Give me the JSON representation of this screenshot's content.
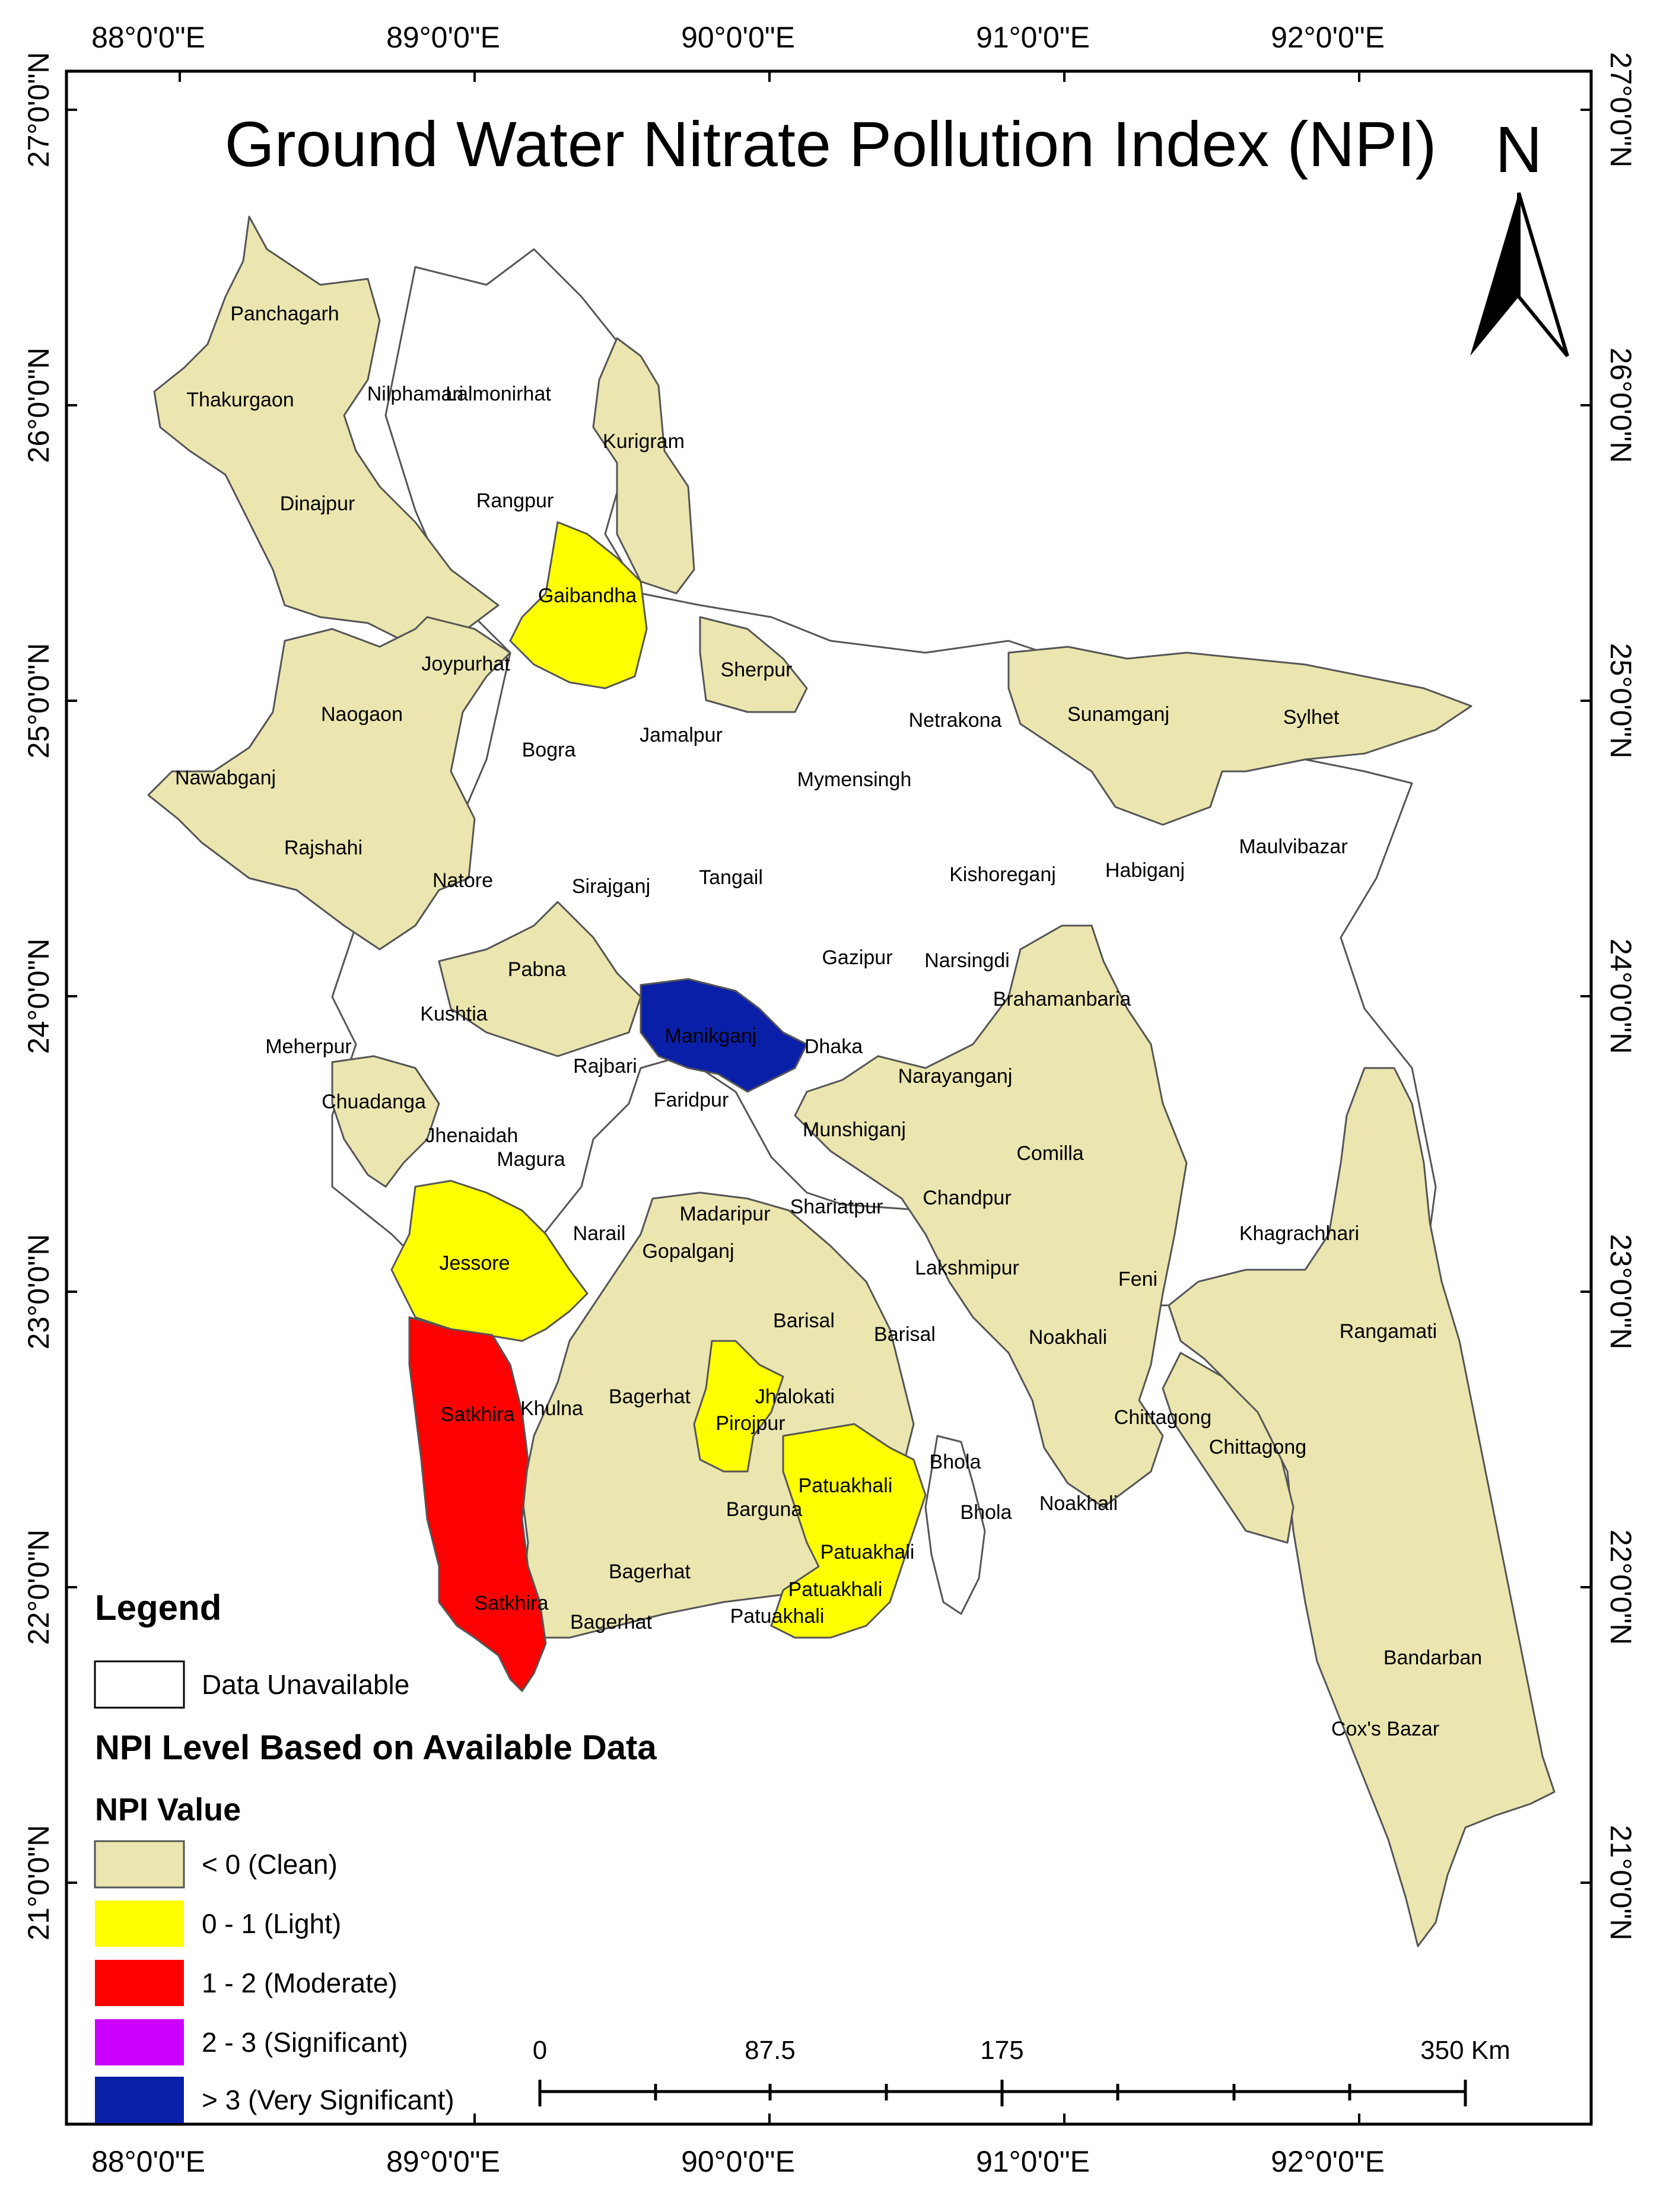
{
  "title": "Ground Water Nitrate Pollution Index (NPI)",
  "north_arrow": {
    "label": "N",
    "icon": "north-arrow-icon"
  },
  "graticule": {
    "longitude_labels": [
      "88°0'0\"E",
      "89°0'0\"E",
      "90°0'0\"E",
      "91°0'0\"E",
      "92°0'0\"E"
    ],
    "latitude_labels": [
      "27°0'0\"N",
      "26°0'0\"N",
      "25°0'0\"N",
      "24°0'0\"N",
      "23°0'0\"N",
      "22°0'0\"N",
      "21°0'0\"N"
    ]
  },
  "colors": {
    "clean": "#EBE6AF",
    "light": "#FFFF00",
    "moderate": "#FF0000",
    "significant": "#CC00FF",
    "very_significant": "#0A1FA8",
    "unavailable": "#FFFFFF",
    "outline": "#555555"
  },
  "districts": {
    "clean": [
      "Panchagarh",
      "Thakurgaon",
      "Dinajpur",
      "Kurigram",
      "Joypurhat",
      "Naogaon",
      "Nawabganj",
      "Rajshahi",
      "Sherpur",
      "Sunamganj",
      "Sylhet",
      "Pabna",
      "Chuadanga",
      "Dhaka",
      "Narayanganj",
      "Munshiganj",
      "Brahamanbaria",
      "Comilla",
      "Chandpur",
      "Madaripur",
      "Gopalganj",
      "Barisal",
      "Khulna",
      "Bagerhat",
      "Noakhali",
      "Chittagong",
      "Rangamati",
      "Bandarban",
      "Cox's Bazar"
    ],
    "light": [
      "Gaibandha",
      "Jessore",
      "Pirojpur",
      "Patuakhali"
    ],
    "moderate": [
      "Satkhira"
    ],
    "very_significant": [
      "Manikganj"
    ],
    "unavailable": [
      "Nilphamari",
      "Lalmonirhat",
      "Rangpur",
      "Bogra",
      "Jamalpur",
      "Netrakona",
      "Mymensingh",
      "Tangail",
      "Kishoreganj",
      "Habiganj",
      "Maulvibazar",
      "Natore",
      "Sirajganj",
      "Gazipur",
      "Narsingdi",
      "Kushtia",
      "Meherpur",
      "Rajbari",
      "Faridpur",
      "Jhenaidah",
      "Magura",
      "Narail",
      "Shariatpur",
      "Lakshmipur",
      "Jhalokati",
      "Barguna",
      "Bhola",
      "Feni",
      "Khagrachhari"
    ]
  },
  "map_labels": [
    "Panchagarh",
    "Thakurgaon",
    "Nilphamari",
    "Lalmonirhat",
    "Kurigram",
    "Dinajpur",
    "Rangpur",
    "Gaibandha",
    "Joypurhat",
    "Sherpur",
    "Naogaon",
    "Bogra",
    "Jamalpur",
    "Netrakona",
    "Sunamganj",
    "Sylhet",
    "Nawabganj",
    "Mymensingh",
    "Rajshahi",
    "Maulvibazar",
    "Natore",
    "Sirajganj",
    "Tangail",
    "Kishoreganj",
    "Habiganj",
    "Gazipur",
    "Narsingdi",
    "Pabna",
    "Brahamanbaria",
    "Kushtia",
    "Manikganj",
    "Dhaka",
    "Meherpur",
    "Rajbari",
    "Narayanganj",
    "Chuadanga",
    "Faridpur",
    "Munshiganj",
    "Jhenaidah",
    "Magura",
    "Comilla",
    "Madaripur",
    "Shariatpur",
    "Chandpur",
    "Narail",
    "Gopalganj",
    "Khagrachhari",
    "Jessore",
    "Lakshmipur",
    "Feni",
    "Barisal",
    "Barisal",
    "Rangamati",
    "Noakhali",
    "Satkhira",
    "Khulna",
    "Bagerhat",
    "Jhalokati",
    "Pirojpur",
    "Chittagong",
    "Chittagong",
    "Patuakhali",
    "Bhola",
    "Barguna",
    "Bhola",
    "Noakhali",
    "Patuakhali",
    "Bagerhat",
    "Satkhira",
    "Patuakhali",
    "Bagerhat",
    "Patuakhali",
    "Bandarban",
    "Cox's Bazar"
  ],
  "legend": {
    "title": "Legend",
    "unavailable_label": "Data Unavailable",
    "subtitle": "NPI Level Based on Available Data",
    "value_heading": "NPI Value",
    "items": [
      {
        "label": "< 0 (Clean)",
        "color": "#EBE6AF"
      },
      {
        "label": "0 - 1 (Light)",
        "color": "#FFFF00"
      },
      {
        "label": "1 - 2 (Moderate)",
        "color": "#FF0000"
      },
      {
        "label": "2 - 3 (Significant)",
        "color": "#CC00FF"
      },
      {
        "label": "> 3 (Very Significant)",
        "color": "#0A1FA8"
      }
    ]
  },
  "scale_bar": {
    "labels": [
      "0",
      "87.5",
      "175",
      "350 Km"
    ]
  }
}
